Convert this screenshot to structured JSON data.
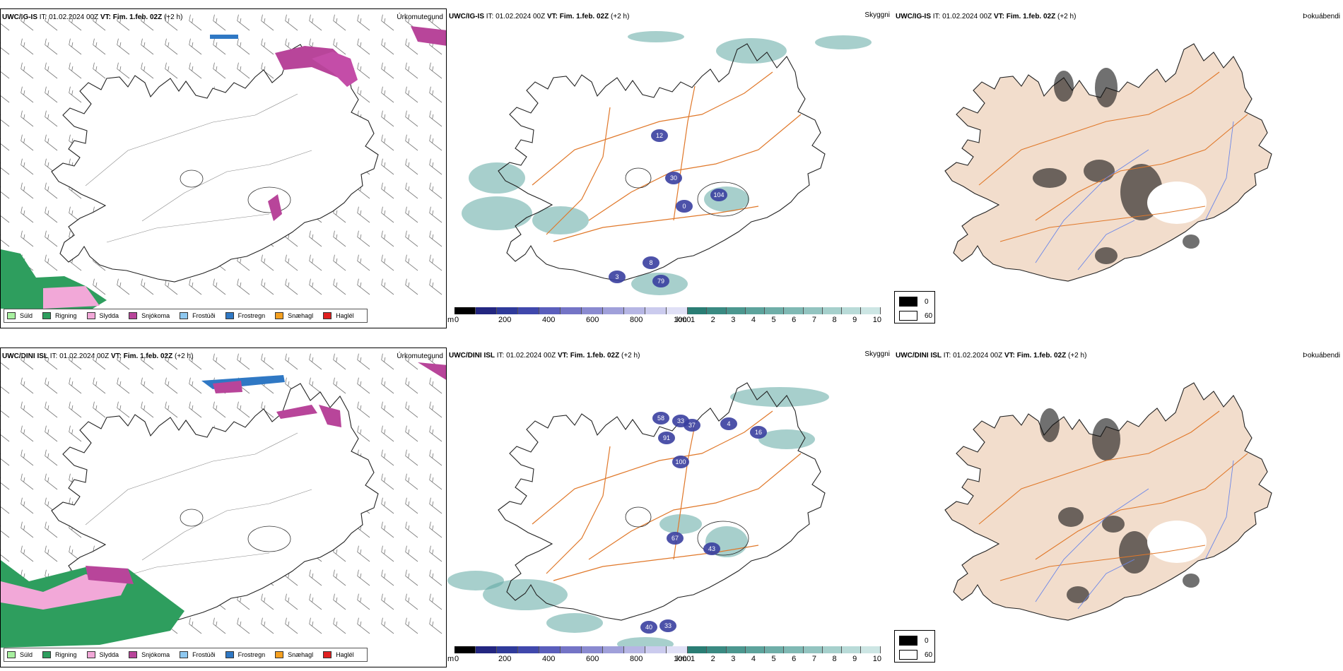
{
  "rows": [
    {
      "panels": {
        "precip": {
          "header_model": "UWC/IG-IS",
          "header_it": "IT: 01.02.2024 00Z",
          "header_vt_label": "VT:",
          "header_vt": "Fim. 1.feb. 02Z",
          "header_lead": "(+2 h)",
          "field": "Úrkomutegund"
        },
        "visibility": {
          "header_model": "UWC/IG-IS",
          "header_it": "IT: 01.02.2024 00Z",
          "header_vt_label": "VT:",
          "header_vt": "Fim. 1.feb. 02Z",
          "header_lead": "(+2 h)",
          "field": "Skyggni",
          "cloud_labels": [
            "12",
            "30",
            "104",
            "0",
            "79",
            "3",
            "8"
          ]
        },
        "fog": {
          "header_model": "UWC/IG-IS",
          "header_it": "IT: 01.02.2024 00Z",
          "header_vt_label": "VT:",
          "header_vt": "Fim. 1.feb. 02Z",
          "header_lead": "(+2 h)",
          "field": "Þokuábendi"
        }
      }
    },
    {
      "panels": {
        "precip": {
          "header_model": "UWC/DINI ISL",
          "header_it": "IT: 01.02.2024 00Z",
          "header_vt_label": "VT:",
          "header_vt": "Fim. 1.feb. 02Z",
          "header_lead": "(+2 h)",
          "field": "Úrkomutegund"
        },
        "visibility": {
          "header_model": "UWC/DINI ISL",
          "header_it": "IT: 01.02.2024 00Z",
          "header_vt_label": "VT:",
          "header_vt": "Fim. 1.feb. 02Z",
          "header_lead": "(+2 h)",
          "field": "Skyggni",
          "cloud_labels": [
            "58",
            "33",
            "37",
            "91",
            "100",
            "4",
            "16",
            "67",
            "43",
            "40",
            "33"
          ]
        },
        "fog": {
          "header_model": "UWC/DINI ISL",
          "header_it": "IT: 01.02.2024 00Z",
          "header_vt_label": "VT:",
          "header_vt": "Fim. 1.feb. 02Z",
          "header_lead": "(+2 h)",
          "field": "Þokuábendi"
        }
      }
    }
  ],
  "precip_legend": [
    {
      "label": "Súld",
      "color": "#a8f0a0"
    },
    {
      "label": "Rigning",
      "color": "#2e9e5e"
    },
    {
      "label": "Slydda",
      "color": "#f2a8d8"
    },
    {
      "label": "Snjókoma",
      "color": "#b8459a"
    },
    {
      "label": "Frostúði",
      "color": "#8ec8f0"
    },
    {
      "label": "Frostregn",
      "color": "#2f78c4"
    },
    {
      "label": "Snæhagl",
      "color": "#f5a020"
    },
    {
      "label": "Haglél",
      "color": "#e02020"
    }
  ],
  "visibility_scale": {
    "unit_m": "m",
    "m_ticks": [
      "0",
      "200",
      "400",
      "600",
      "800",
      "1000"
    ],
    "unit_km": "km",
    "km_ticks": [
      "1",
      "2",
      "3",
      "4",
      "5",
      "6",
      "7",
      "8",
      "9",
      "10"
    ],
    "m_colors": [
      "#000000",
      "#232680",
      "#2f3a9a",
      "#4048ac",
      "#5a5ebc",
      "#7474c6",
      "#8a8ad0",
      "#a0a0da",
      "#b6b6e4",
      "#cbcbee",
      "#e0e0f6"
    ],
    "km_colors": [
      "#2a7d74",
      "#3a8a82",
      "#4c978f",
      "#5da39c",
      "#6faea8",
      "#80b9b4",
      "#93c4c0",
      "#a6d0cc",
      "#b9dbd8",
      "#cde6e4",
      "#ffffff"
    ]
  },
  "fog_key": {
    "high_label": "0",
    "low_label": "60"
  },
  "colors": {
    "land_fog": "#f2ddcc",
    "road": "#e0782a",
    "river": "#6b86e8",
    "coast": "#222222",
    "teal": "#5fa8a2"
  }
}
